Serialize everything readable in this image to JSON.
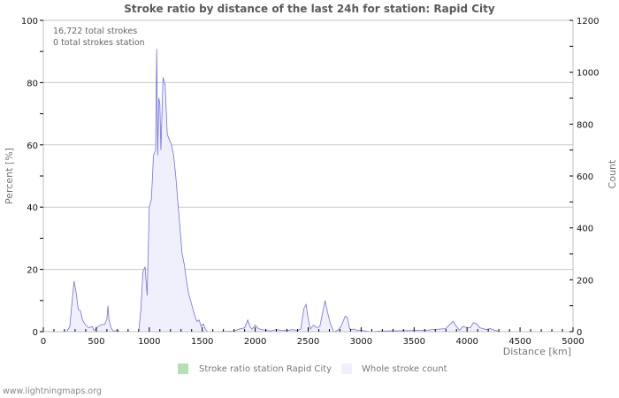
{
  "chart_data": {
    "type": "area",
    "title": "Stroke ratio by distance of the last 24h for station: Rapid City",
    "xlabel": "Distance   [km]",
    "ylabel_left": "Percent   [%]",
    "ylabel_right": "Count",
    "xlim": [
      0,
      5000
    ],
    "ylim_left": [
      0,
      100
    ],
    "ylim_right": [
      0,
      1200
    ],
    "x_ticks": [
      0,
      500,
      1000,
      1500,
      2000,
      2500,
      3000,
      3500,
      4000,
      4500,
      5000
    ],
    "y_ticks_left": [
      0,
      20,
      40,
      60,
      80,
      100
    ],
    "y_ticks_right": [
      0,
      200,
      400,
      600,
      800,
      1000,
      1200
    ],
    "grid": true,
    "legend_position": "bottom",
    "annotations": [
      "16,722 total strokes",
      "0 total strokes station"
    ],
    "series": [
      {
        "name": "Stroke ratio station Rapid City",
        "axis": "left",
        "color": "#b5e0b5",
        "x": [],
        "values": []
      },
      {
        "name": "Whole stroke count",
        "axis": "right",
        "color": "#8080e0",
        "fill": "#f0f0fc",
        "x": [
          220,
          250,
          270,
          290,
          310,
          330,
          350,
          370,
          400,
          430,
          460,
          480,
          500,
          520,
          540,
          560,
          580,
          600,
          610,
          620,
          640,
          660,
          700,
          720,
          900,
          920,
          940,
          960,
          980,
          1000,
          1020,
          1040,
          1060,
          1070,
          1080,
          1090,
          1100,
          1110,
          1130,
          1150,
          1170,
          1190,
          1210,
          1230,
          1250,
          1270,
          1290,
          1310,
          1330,
          1350,
          1370,
          1390,
          1410,
          1430,
          1450,
          1470,
          1490,
          1510,
          1530,
          1550,
          1570,
          1590,
          1800,
          1850,
          1900,
          1930,
          1950,
          1970,
          2000,
          2030,
          2060,
          2100,
          2150,
          2200,
          2250,
          2300,
          2350,
          2400,
          2430,
          2460,
          2480,
          2500,
          2520,
          2550,
          2580,
          2610,
          2640,
          2660,
          2680,
          2710,
          2740,
          2780,
          2810,
          2850,
          2870,
          2890,
          2910,
          2930,
          2960,
          3000,
          3050,
          3100,
          3150,
          3550,
          3600,
          3800,
          3830,
          3870,
          3900,
          3930,
          3960,
          4000,
          4030,
          4060,
          4090,
          4120,
          4150,
          4180,
          4220,
          4260,
          4300
        ],
        "values": [
          0,
          20,
          110,
          195,
          150,
          85,
          80,
          45,
          25,
          15,
          20,
          5,
          12,
          22,
          25,
          28,
          28,
          50,
          100,
          45,
          15,
          2,
          5,
          0,
          0,
          80,
          230,
          250,
          140,
          480,
          510,
          680,
          700,
          1090,
          680,
          900,
          880,
          700,
          980,
          950,
          760,
          740,
          720,
          680,
          600,
          500,
          400,
          300,
          260,
          200,
          150,
          120,
          90,
          60,
          40,
          45,
          20,
          30,
          10,
          0,
          0,
          0,
          2,
          10,
          15,
          45,
          20,
          10,
          25,
          12,
          8,
          5,
          3,
          8,
          5,
          4,
          8,
          5,
          10,
          90,
          105,
          50,
          10,
          25,
          15,
          20,
          80,
          120,
          80,
          30,
          0,
          5,
          20,
          60,
          55,
          12,
          8,
          10,
          5,
          5,
          2,
          0,
          2,
          5,
          5,
          12,
          25,
          40,
          20,
          5,
          20,
          15,
          15,
          35,
          30,
          15,
          12,
          8,
          12,
          5,
          2
        ],
        "note": "values estimated from pixel heights against right Count axis"
      }
    ]
  },
  "footer": "www.lightningmaps.org"
}
